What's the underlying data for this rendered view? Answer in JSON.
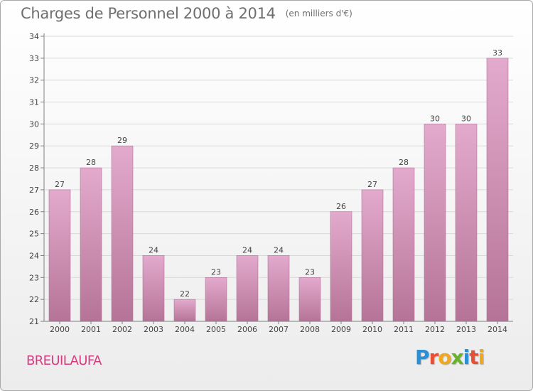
{
  "title": "Charges de Personnel 2000 à 2014",
  "unit_note": "(en milliers d'€)",
  "commune": "BREUILAUFA",
  "logo": {
    "text": "Proxiti",
    "letters": [
      {
        "char": "P",
        "color": "#2b8fd6"
      },
      {
        "char": "r",
        "color": "#e94f35"
      },
      {
        "char": "o",
        "color": "#f2a81d"
      },
      {
        "char": "x",
        "color": "#69b22a"
      },
      {
        "char": "i",
        "color": "#2b8fd6"
      },
      {
        "char": "t",
        "color": "#e94f35"
      },
      {
        "char": "i",
        "color": "#f2a81d"
      }
    ]
  },
  "colors": {
    "bar_top": "#e3aacd",
    "bar_bottom": "#b57497",
    "bar_stroke": "#b0739a",
    "axis": "#7f7f7f",
    "grid": "#d8d8d8",
    "text": "#444444"
  },
  "chart_data": {
    "type": "bar",
    "title": "Charges de Personnel 2000 à 2014",
    "subtitle": "(en milliers d'€)",
    "categories": [
      "2000",
      "2001",
      "2002",
      "2003",
      "2004",
      "2005",
      "2006",
      "2007",
      "2008",
      "2009",
      "2010",
      "2011",
      "2012",
      "2013",
      "2014"
    ],
    "values": [
      27,
      28,
      29,
      24,
      22,
      23,
      24,
      24,
      23,
      26,
      27,
      28,
      30,
      30,
      33
    ],
    "xlabel": "",
    "ylabel": "",
    "ylim": [
      21,
      34
    ],
    "yticks": [
      21,
      22,
      23,
      24,
      25,
      26,
      27,
      28,
      29,
      30,
      31,
      32,
      33,
      34
    ],
    "grid": true,
    "legend": "none"
  }
}
